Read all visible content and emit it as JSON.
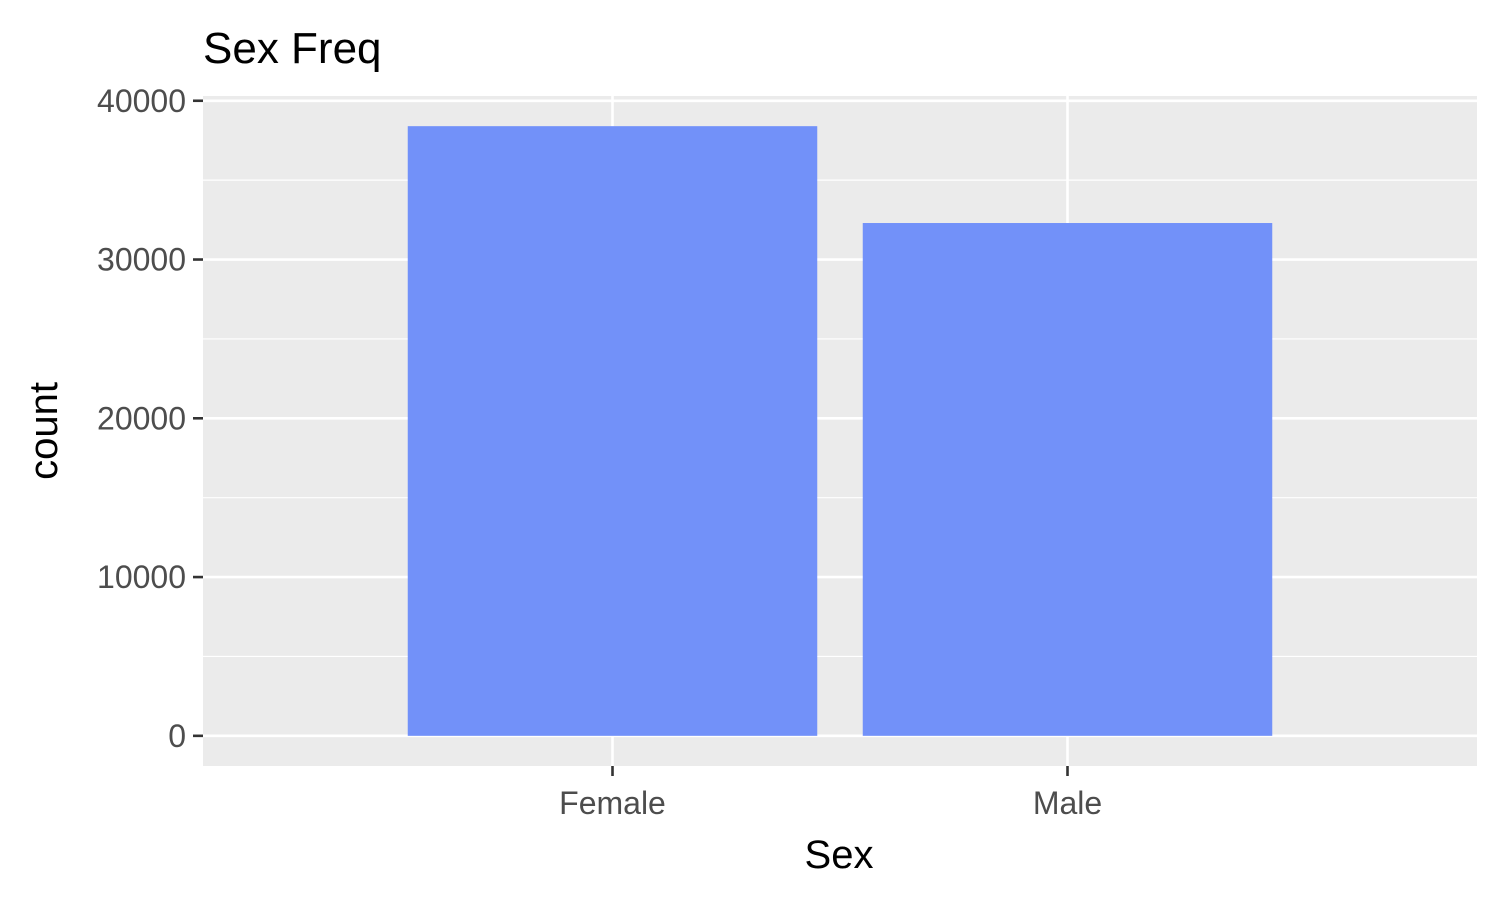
{
  "chart_data": {
    "type": "bar",
    "title": "Sex Freq",
    "xlabel": "Sex",
    "ylabel": "count",
    "categories": [
      "Female",
      "Male"
    ],
    "values": [
      38400,
      32300
    ],
    "ylim": [
      -1900,
      40300
    ],
    "yticks": [
      0,
      10000,
      20000,
      30000,
      40000
    ],
    "ytick_labels": [
      "0",
      "10000",
      "20000",
      "30000",
      "40000"
    ],
    "grid": true,
    "legend": "none",
    "colors": {
      "bar": "#7291f9",
      "panel": "#ebebeb",
      "grid": "#ffffff",
      "tick_text": "#4d4d4d",
      "axis_ticks": "#333333"
    }
  }
}
